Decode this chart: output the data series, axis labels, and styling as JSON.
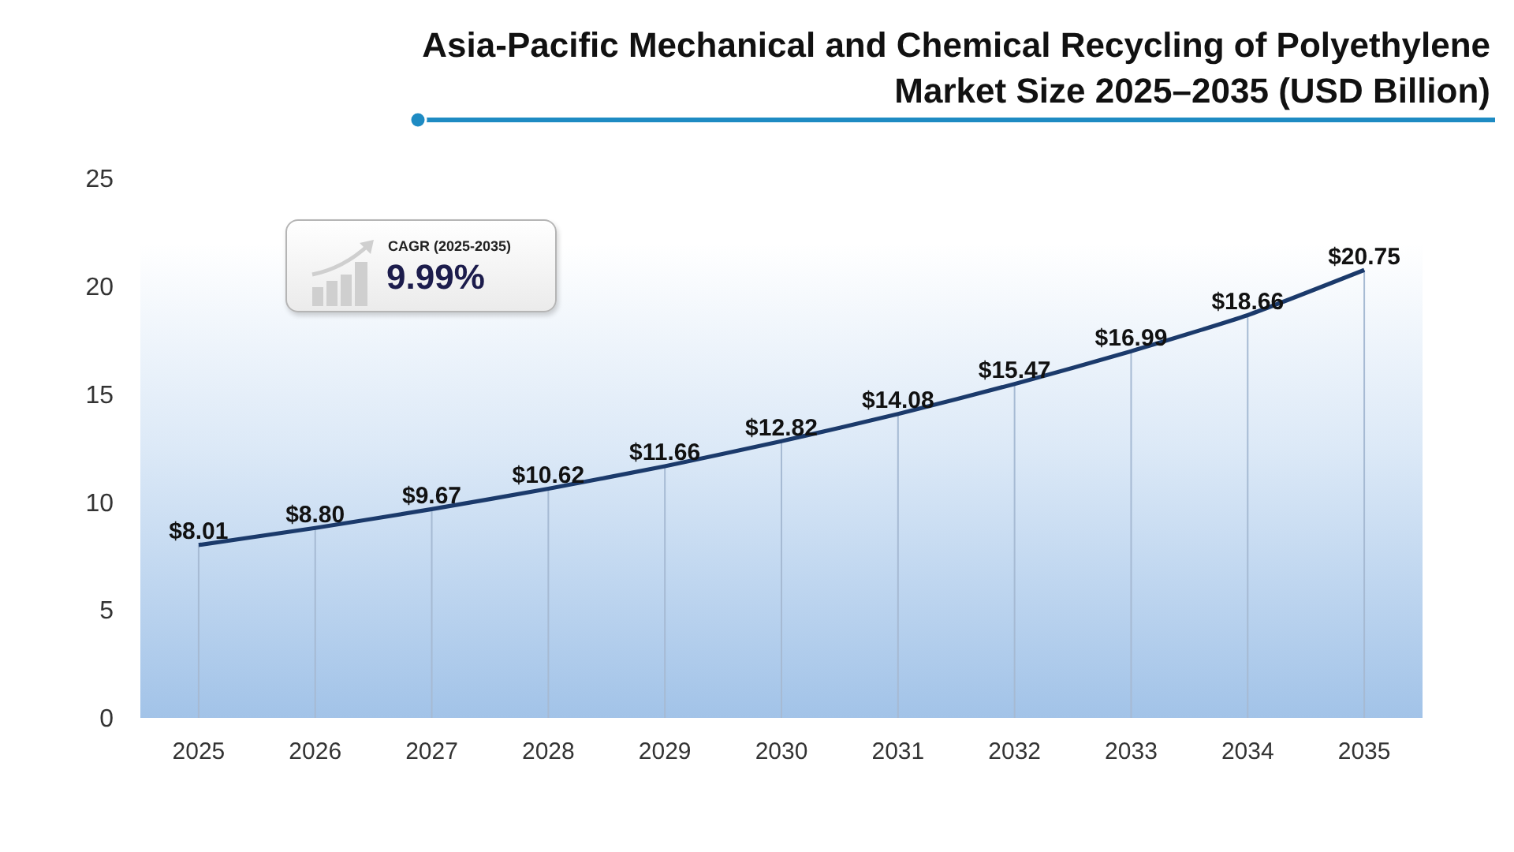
{
  "chart_data": {
    "type": "line",
    "title": "Asia-Pacific Mechanical and Chemical Recycling of Polyethylene Market Size 2025–2035 (USD Billion)",
    "categories": [
      "2025",
      "2026",
      "2027",
      "2028",
      "2029",
      "2030",
      "2031",
      "2032",
      "2033",
      "2034",
      "2035"
    ],
    "values": [
      8.01,
      8.8,
      9.67,
      10.62,
      11.66,
      12.82,
      14.08,
      15.47,
      16.99,
      18.66,
      20.75
    ],
    "value_labels": [
      "$8.01",
      "$8.80",
      "$9.67",
      "$10.62",
      "$11.66",
      "$12.82",
      "$14.08",
      "$15.47",
      "$16.99",
      "$18.66",
      "$20.75"
    ],
    "color": "#1b3a6b",
    "line_style": "solid",
    "ylim": [
      0,
      25
    ],
    "yticks": [
      0,
      5,
      10,
      15,
      20,
      25
    ],
    "annotations": [
      "CAGR (2025-2035)",
      "9.99%"
    ]
  }
}
